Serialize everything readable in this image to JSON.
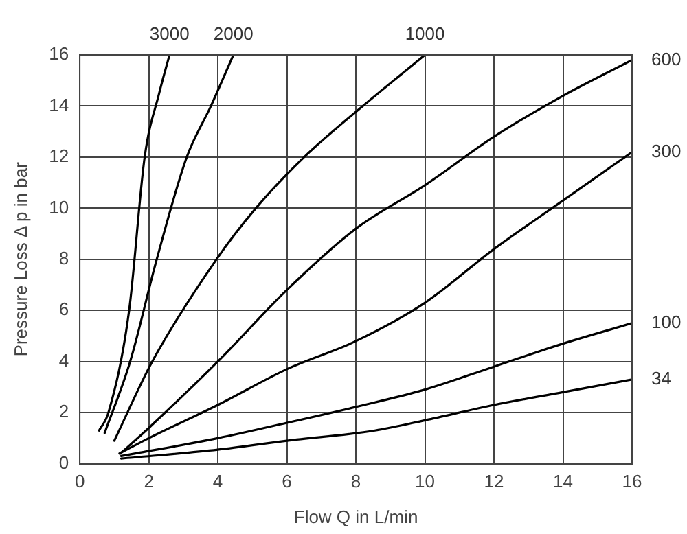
{
  "chart_data": {
    "type": "line",
    "xlabel": "Flow Q in L/min",
    "ylabel": "Pressure Loss Δ p in bar",
    "xlim": [
      0,
      16
    ],
    "ylim": [
      0,
      16
    ],
    "xticks": [
      0,
      2,
      4,
      6,
      8,
      10,
      12,
      14,
      16
    ],
    "yticks": [
      0,
      2,
      4,
      6,
      8,
      10,
      12,
      14,
      16
    ],
    "grid": true,
    "legend": false,
    "marker": "none",
    "line_style": "solid",
    "series": [
      {
        "name": "3000",
        "color": "#000000",
        "x": [
          0.56,
          0.83,
          1.43,
          1.88,
          2.3,
          2.6
        ],
        "values": [
          1.3,
          2,
          6,
          12,
          14.5,
          16
        ]
      },
      {
        "name": "2000",
        "color": "#000000",
        "x": [
          0.72,
          1.46,
          2.23,
          3.1,
          3.8,
          4.45
        ],
        "values": [
          1.2,
          4,
          8,
          12,
          14,
          16
        ]
      },
      {
        "name": "1000",
        "color": "#000000",
        "x": [
          1.0,
          2.1,
          3.96,
          5.1,
          6.5,
          8.2,
          10
        ],
        "values": [
          0.9,
          4,
          8,
          10,
          12,
          14,
          16
        ]
      },
      {
        "name": "600",
        "color": "#000000",
        "x": [
          1.18,
          2,
          4,
          6,
          8,
          10,
          12,
          14,
          16
        ],
        "values": [
          0.4,
          1.4,
          4,
          6.8,
          9.2,
          10.9,
          12.8,
          14.4,
          15.8
        ]
      },
      {
        "name": "300",
        "color": "#000000",
        "x": [
          1.15,
          2,
          4,
          6,
          8,
          10,
          12,
          14,
          16
        ],
        "values": [
          0.4,
          1,
          2.3,
          3.7,
          4.8,
          6.3,
          8.4,
          10.3,
          12.2
        ]
      },
      {
        "name": "100",
        "color": "#000000",
        "x": [
          1.2,
          4,
          6,
          8.55,
          10,
          12,
          14,
          16
        ],
        "values": [
          0.3,
          1,
          1.6,
          2.4,
          2.9,
          3.8,
          4.7,
          5.5
        ]
      },
      {
        "name": "34",
        "color": "#000000",
        "x": [
          1.2,
          4,
          6,
          8.55,
          10,
          12,
          14,
          16
        ],
        "values": [
          0.2,
          0.55,
          0.9,
          1.3,
          1.7,
          2.3,
          2.8,
          3.3
        ]
      }
    ]
  }
}
